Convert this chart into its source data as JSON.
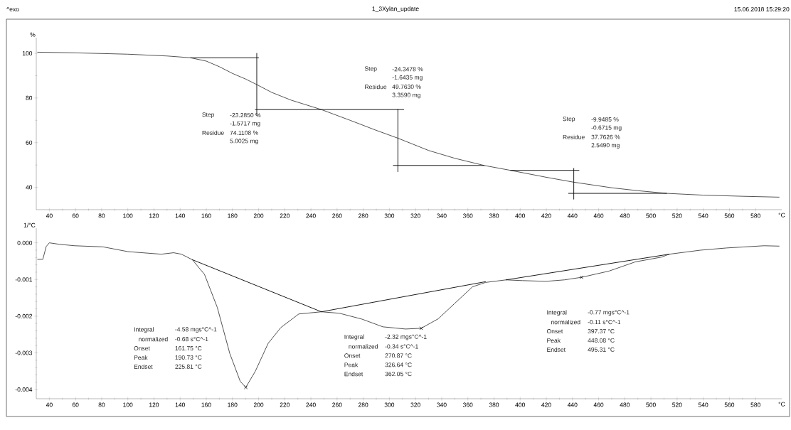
{
  "chart_data": [
    {
      "type": "line",
      "title": "1_3Xylan_update",
      "ylabel": "%",
      "xlabel": "°C",
      "xlim": [
        30,
        600
      ],
      "ylim": [
        30,
        107
      ],
      "xticks": [
        40,
        60,
        80,
        100,
        120,
        140,
        160,
        180,
        200,
        220,
        240,
        260,
        280,
        300,
        320,
        340,
        360,
        380,
        400,
        420,
        440,
        460,
        480,
        500,
        520,
        540,
        560,
        580
      ],
      "yticks": [
        40,
        60,
        80,
        100
      ],
      "marker": "none",
      "series": [
        {
          "color": "#404040",
          "x": [
            31,
            60,
            100,
            130,
            148,
            160,
            170,
            180,
            190,
            198.6,
            210,
            225,
            248,
            270,
            290,
            306.5,
            330,
            350,
            372.4,
            392.6,
            420,
            441,
            470,
            490,
            512,
            540,
            570,
            598
          ],
          "values": [
            100.5,
            100.2,
            99.6,
            98.8,
            98,
            96.5,
            94,
            91,
            88.5,
            86,
            82.5,
            79,
            74.8,
            70,
            65.5,
            62,
            56.5,
            53,
            49.8,
            47.6,
            44.5,
            42.3,
            39.8,
            38.5,
            37.3,
            36.5,
            36,
            35.6
          ]
        },
        {
          "color": "#000000",
          "x": [
            148,
            200
          ],
          "values": [
            98,
            98
          ]
        },
        {
          "color": "#000000",
          "x": [
            198.6,
            198.6
          ],
          "values": [
            100,
            72.2
          ]
        },
        {
          "color": "#000000",
          "x": [
            197.5,
            311
          ],
          "values": [
            74.8,
            74.8
          ]
        },
        {
          "color": "#000000",
          "x": [
            306.5,
            306.5
          ],
          "values": [
            75,
            47
          ]
        },
        {
          "color": "#000000",
          "x": [
            303,
            372.4
          ],
          "values": [
            49.8,
            49.8
          ]
        },
        {
          "color": "#000000",
          "x": [
            392.6,
            445
          ],
          "values": [
            47.6,
            47.6
          ]
        },
        {
          "color": "#000000",
          "x": [
            441,
            441
          ],
          "values": [
            48.5,
            34.7
          ]
        },
        {
          "color": "#000000",
          "x": [
            437,
            512
          ],
          "values": [
            37.3,
            37.3
          ]
        }
      ],
      "annotations": [
        "^exo",
        "15.06.2018 15:29:20",
        "Step",
        "-23.2850 %",
        "-1.5717 mg",
        "Residue",
        "74.1108 %",
        "5.0025 mg",
        "Step",
        "-24.3478 %",
        "-1.6435 mg",
        "Residue",
        "49.7630 %",
        "3.3590 mg",
        "Step",
        "-9.9485 %",
        "-0.6715 mg",
        "Residue",
        "37.7626 %",
        "2.5490 mg"
      ]
    },
    {
      "type": "line",
      "ylabel": "1/°C",
      "xlabel": "°C",
      "xlim": [
        30,
        600
      ],
      "ylim": [
        -0.00425,
        0.0004
      ],
      "xticks": [
        40,
        60,
        80,
        100,
        120,
        140,
        160,
        180,
        200,
        220,
        240,
        260,
        280,
        300,
        320,
        340,
        360,
        380,
        400,
        420,
        440,
        460,
        480,
        500,
        520,
        540,
        560,
        580
      ],
      "yticks": [
        {
          "value": 0,
          "label": "0.000"
        },
        -0.001,
        -0.002,
        -0.003,
        -0.004
      ],
      "marker": "none",
      "series": [
        {
          "color": "#404040",
          "x": [
            31,
            35,
            37.6,
            40,
            47.6,
            59.4,
            81,
            100,
            125.6,
            135,
            141,
            149.3,
            158.6,
            168.4,
            178,
            186,
            190.2,
            197.5,
            207.3,
            217,
            230.7,
            248,
            261.8,
            279,
            295,
            312.3,
            324.3,
            337.4,
            349.4,
            363.5,
            373.5,
            389.2,
            401.7,
            419.7,
            433.8,
            446.9,
            468,
            488,
            508,
            514,
            538,
            558,
            586.5,
            598
          ],
          "values": [
            -0.00045,
            -0.00045,
            -0.0001,
            0,
            -4e-05,
            -8e-05,
            -0.00011,
            -0.00024,
            -0.00031,
            -0.00027,
            -0.00031,
            -0.00046,
            -0.00086,
            -0.00176,
            -0.00302,
            -0.00378,
            -0.00394,
            -0.0035,
            -0.00274,
            -0.00231,
            -0.00194,
            -0.00188,
            -0.00192,
            -0.00208,
            -0.00229,
            -0.00235,
            -0.00233,
            -0.00207,
            -0.00167,
            -0.0012,
            -0.00108,
            -0.00101,
            -0.00103,
            -0.00105,
            -0.00101,
            -0.00094,
            -0.00077,
            -0.00052,
            -0.00039,
            -0.00031,
            -0.0002,
            -0.00014,
            -8e-05,
            -9e-05
          ]
        },
        {
          "color": "#000000",
          "x": [
            149.3,
            248
          ],
          "values": [
            -0.00046,
            -0.00188
          ]
        },
        {
          "color": "#000000",
          "x": [
            248,
            373.5
          ],
          "values": [
            -0.00188,
            -0.00106
          ]
        },
        {
          "color": "#000000",
          "x": [
            389.2,
            514
          ],
          "values": [
            -0.00101,
            -0.00031
          ]
        },
        {
          "type": "scatter",
          "marker": "cross",
          "color": "#000000",
          "x": [
            190.2,
            324.3,
            446.9
          ],
          "values": [
            -0.00394,
            -0.00233,
            -0.00094
          ]
        }
      ],
      "annotations": [
        "Integral",
        "-4.58 mgs°C^-1",
        "normalized",
        "-0.68 s°C^-1",
        "Onset",
        "161.75 °C",
        "Peak",
        "190.73 °C",
        "Endset",
        "225.81 °C",
        "Integral",
        "-2.32 mgs°C^-1",
        "normalized",
        "-0.34 s°C^-1",
        "Onset",
        "270.87 °C",
        "Peak",
        "326.64 °C",
        "Endset",
        "362.05 °C",
        "Integral",
        "-0.77 mgs°C^-1",
        "normalized",
        "-0.11 s°C^-1",
        "Onset",
        "397.37 °C",
        "Peak",
        "448.08 °C",
        "Endset",
        "495.31 °C"
      ]
    }
  ]
}
